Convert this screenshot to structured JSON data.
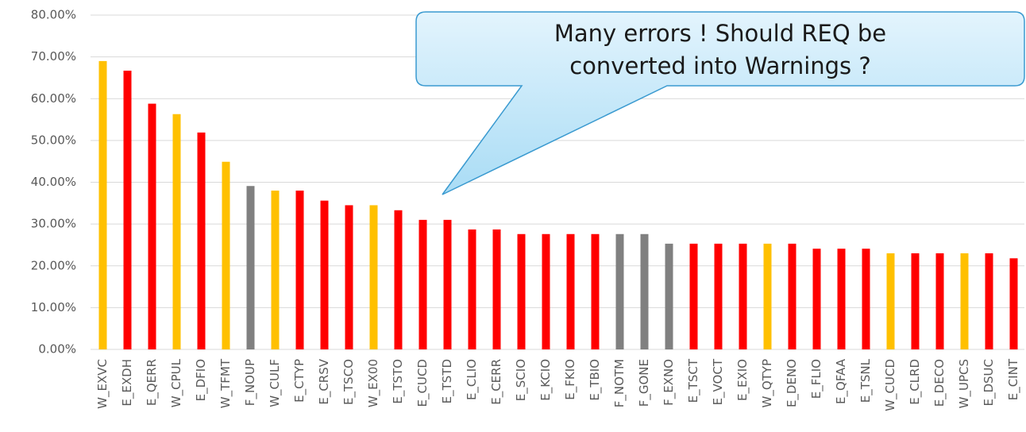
{
  "chart_data": {
    "type": "bar",
    "annotation": [
      "Many errors ! Should REQ be",
      "converted into Warnings ?"
    ],
    "categories": [
      "W_EXVC",
      "E_EXDH",
      "E_QERR",
      "W_CPUL",
      "E_DFIO",
      "W_TFMT",
      "F_NOUP",
      "W_CULF",
      "E_CTYP",
      "E_CRSV",
      "E_TSCO",
      "W_EX00",
      "E_TSTO",
      "E_CUCD",
      "E_TSTD",
      "E_CLIO",
      "E_CERR",
      "E_SCIO",
      "E_KCIO",
      "E_FKIO",
      "E_TBIO",
      "F_NOTM",
      "F_GONE",
      "F_EXNO",
      "E_TSCT",
      "E_VOCT",
      "E_EXIO",
      "W_QTYP",
      "E_DENO",
      "E_FLIO",
      "E_QFAA",
      "E_TSNL",
      "W_CUCD",
      "E_CLRD",
      "E_DECO",
      "W_UPCS",
      "E_DSUC",
      "E_CINT"
    ],
    "values": [
      69.0,
      66.7,
      58.8,
      56.3,
      51.9,
      44.9,
      39.1,
      38.0,
      38.0,
      35.6,
      34.5,
      34.5,
      33.3,
      31.0,
      31.0,
      28.7,
      28.7,
      27.6,
      27.6,
      27.6,
      27.6,
      27.6,
      27.6,
      25.3,
      25.3,
      25.3,
      25.3,
      25.3,
      25.3,
      24.1,
      24.1,
      24.1,
      23.0,
      23.0,
      23.0,
      23.0,
      23.0,
      21.8
    ],
    "colors": [
      "#FFC000",
      "#FF0000",
      "#FF0000",
      "#FFC000",
      "#FF0000",
      "#FFC000",
      "#808080",
      "#FFC000",
      "#FF0000",
      "#FF0000",
      "#FF0000",
      "#FFC000",
      "#FF0000",
      "#FF0000",
      "#FF0000",
      "#FF0000",
      "#FF0000",
      "#FF0000",
      "#FF0000",
      "#FF0000",
      "#FF0000",
      "#808080",
      "#808080",
      "#808080",
      "#FF0000",
      "#FF0000",
      "#FF0000",
      "#FFC000",
      "#FF0000",
      "#FF0000",
      "#FF0000",
      "#FF0000",
      "#FFC000",
      "#FF0000",
      "#FF0000",
      "#FFC000",
      "#FF0000",
      "#FF0000"
    ],
    "ylim": [
      0,
      80
    ],
    "yticks": [
      {
        "value": 0,
        "label": "0.00%"
      },
      {
        "value": 10,
        "label": "10.00%"
      },
      {
        "value": 20,
        "label": "20.00%"
      },
      {
        "value": 30,
        "label": "30.00%"
      },
      {
        "value": 40,
        "label": "40.00%"
      },
      {
        "value": 50,
        "label": "50.00%"
      },
      {
        "value": 60,
        "label": "60.00%"
      },
      {
        "value": 70,
        "label": "70.00%"
      },
      {
        "value": 80,
        "label": "80.00%"
      }
    ],
    "grid": true
  }
}
